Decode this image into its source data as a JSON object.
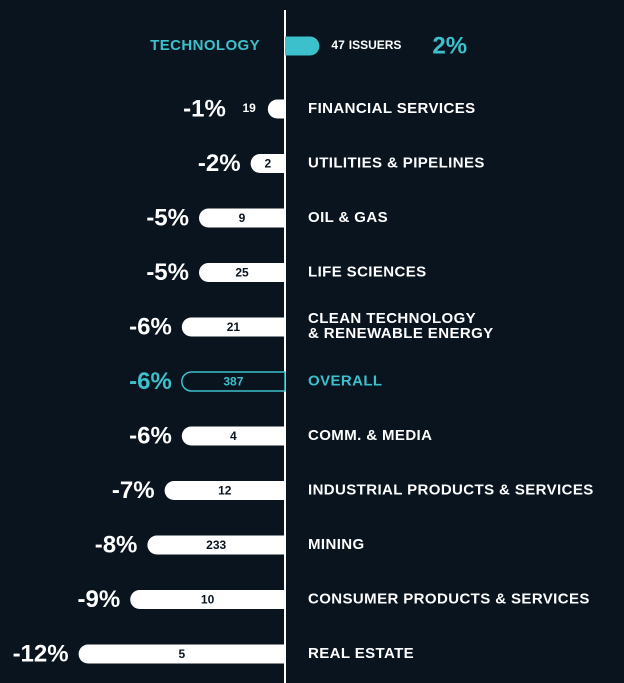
{
  "chart_data": {
    "type": "diverging-bar",
    "categories": [
      "TECHNOLOGY",
      "FINANCIAL SERVICES",
      "UTILITIES & PIPELINES",
      "OIL & GAS",
      "LIFE SCIENCES",
      [
        "CLEAN TECHNOLOGY",
        "& RENEWABLE ENERGY"
      ],
      "OVERALL",
      "COMM. & MEDIA",
      "INDUSTRIAL PRODUCTS & SERVICES",
      "MINING",
      "CONSUMER PRODUCTS & SERVICES",
      "REAL ESTATE"
    ],
    "values": [
      2,
      -1,
      -2,
      -5,
      -5,
      -6,
      -6,
      -6,
      -7,
      -8,
      -9,
      -12
    ],
    "value_labels": [
      "2%",
      "-1%",
      "-2%",
      "-5%",
      "-5%",
      "-6%",
      "-6%",
      "-6%",
      "-7%",
      "-8%",
      "-9%",
      "-12%"
    ],
    "issuers": [
      47,
      19,
      2,
      9,
      25,
      21,
      387,
      4,
      12,
      233,
      10,
      5
    ],
    "issuers_label": "ISSUERS",
    "colors": [
      "#3cc0cc",
      "#ffffff",
      "#ffffff",
      "#ffffff",
      "#ffffff",
      "#ffffff",
      "#3cc0cc",
      "#ffffff",
      "#ffffff",
      "#ffffff",
      "#ffffff",
      "#ffffff"
    ],
    "styles": [
      "fill",
      "fill",
      "fill",
      "fill",
      "fill",
      "fill",
      "outline",
      "fill",
      "fill",
      "fill",
      "fill",
      "fill"
    ]
  }
}
